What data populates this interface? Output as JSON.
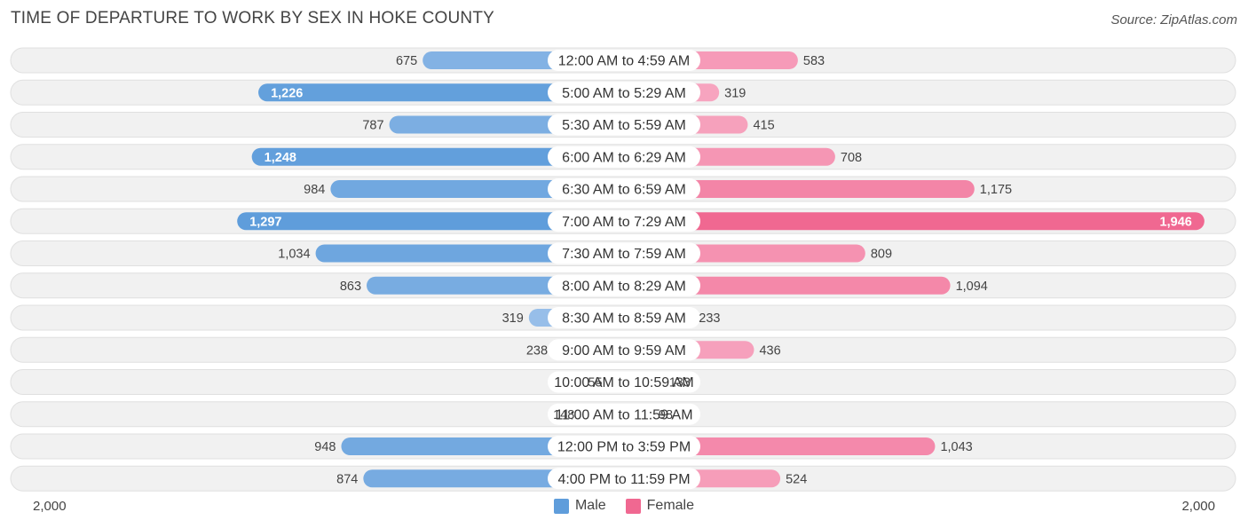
{
  "header": {
    "title": "TIME OF DEPARTURE TO WORK BY SEX IN HOKE COUNTY",
    "source": "Source: ZipAtlas.com"
  },
  "legend": {
    "male_label": "Male",
    "female_label": "Female"
  },
  "axis": {
    "left_label": "2,000",
    "right_label": "2,000"
  },
  "colors": {
    "male_strong": "#5f9ddb",
    "male_light": "#a9c9ee",
    "female_strong": "#f06891",
    "female_light": "#f8b0c8",
    "row_bg": "#f1f1f1",
    "row_border": "#e0e0e0"
  },
  "chart_data": {
    "type": "bar",
    "orientation": "horizontal-diverging",
    "title": "TIME OF DEPARTURE TO WORK BY SEX IN HOKE COUNTY",
    "xlim": [
      -2000,
      2000
    ],
    "legend_placement": "bottom-center",
    "categories": [
      "12:00 AM to 4:59 AM",
      "5:00 AM to 5:29 AM",
      "5:30 AM to 5:59 AM",
      "6:00 AM to 6:29 AM",
      "6:30 AM to 6:59 AM",
      "7:00 AM to 7:29 AM",
      "7:30 AM to 7:59 AM",
      "8:00 AM to 8:29 AM",
      "8:30 AM to 8:59 AM",
      "9:00 AM to 9:59 AM",
      "10:00 AM to 10:59 AM",
      "11:00 AM to 11:59 AM",
      "12:00 PM to 3:59 PM",
      "4:00 PM to 11:59 PM"
    ],
    "series": [
      {
        "name": "Male",
        "values": [
          675,
          1226,
          787,
          1248,
          984,
          1297,
          1034,
          863,
          319,
          238,
          55,
          148,
          948,
          874
        ],
        "labels": [
          "675",
          "1,226",
          "787",
          "1,248",
          "984",
          "1,297",
          "1,034",
          "863",
          "319",
          "238",
          "55",
          "148",
          "948",
          "874"
        ]
      },
      {
        "name": "Female",
        "values": [
          583,
          319,
          415,
          708,
          1175,
          1946,
          809,
          1094,
          233,
          436,
          133,
          98,
          1043,
          524
        ],
        "labels": [
          "583",
          "319",
          "415",
          "708",
          "1,175",
          "1,946",
          "809",
          "1,094",
          "233",
          "436",
          "133",
          "98",
          "1,043",
          "524"
        ]
      }
    ]
  }
}
